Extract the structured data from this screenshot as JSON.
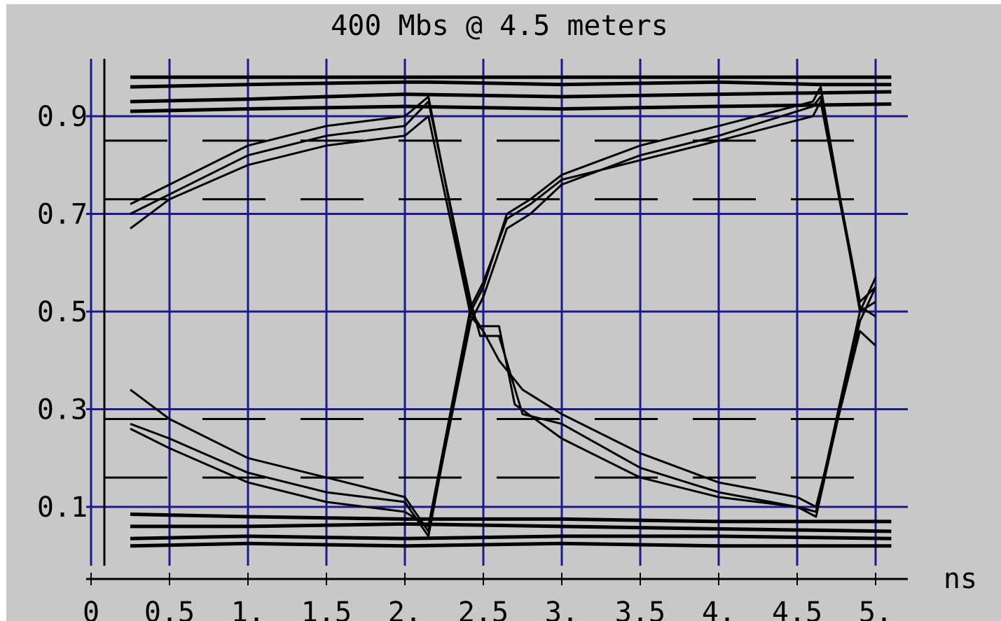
{
  "chart_data": {
    "type": "line",
    "title": "400 Mbs @ 4.5 meters",
    "xlabel": "ns",
    "ylabel": "",
    "xlim": [
      0,
      5.2
    ],
    "ylim": [
      -0.0
    ],
    "x_ticks": [
      {
        "value": 0,
        "label": "0"
      },
      {
        "value": 0.5,
        "label": "0.5"
      },
      {
        "value": 1.0,
        "label": "1."
      },
      {
        "value": 1.5,
        "label": "1.5"
      },
      {
        "value": 2.0,
        "label": "2."
      },
      {
        "value": 2.5,
        "label": "2.5"
      },
      {
        "value": 3.0,
        "label": "3."
      },
      {
        "value": 3.5,
        "label": "3.5"
      },
      {
        "value": 4.0,
        "label": "4."
      },
      {
        "value": 4.5,
        "label": "4.5"
      },
      {
        "value": 5.0,
        "label": "5."
      }
    ],
    "y_ticks": [
      {
        "value": 0.1,
        "label": "0.1"
      },
      {
        "value": 0.3,
        "label": "0.3"
      },
      {
        "value": 0.5,
        "label": "0.5"
      },
      {
        "value": 0.7,
        "label": "0.7"
      },
      {
        "value": 0.9,
        "label": "0.9"
      }
    ],
    "grid": true,
    "legend": "none",
    "colors": {
      "background": "#c8c8c8",
      "grid": "#1a1a8c",
      "trace": "#000000",
      "text": "#000000"
    },
    "series": [
      {
        "x": [
          0.25,
          2.15,
          2.45,
          2.65,
          4.65,
          5.1
        ],
        "y": [
          0.98,
          0.98,
          0.98,
          0.98,
          0.98,
          0.98
        ]
      },
      {
        "x": [
          0.25,
          1.0,
          2.0,
          2.15,
          3.0,
          4.0,
          4.65,
          5.1
        ],
        "y": [
          0.96,
          0.965,
          0.97,
          0.97,
          0.965,
          0.97,
          0.965,
          0.965
        ]
      },
      {
        "x": [
          0.25,
          1.0,
          2.0,
          3.0,
          4.0,
          5.1
        ],
        "y": [
          0.93,
          0.935,
          0.945,
          0.94,
          0.945,
          0.95
        ]
      },
      {
        "x": [
          0.25,
          1.0,
          2.0,
          3.0,
          4.0,
          5.1
        ],
        "y": [
          0.91,
          0.915,
          0.92,
          0.915,
          0.92,
          0.925
        ]
      },
      {
        "x": [
          0.25,
          1.0,
          2.0,
          3.0,
          4.0,
          5.1
        ],
        "y": [
          0.02,
          0.025,
          0.02,
          0.025,
          0.02,
          0.02
        ]
      },
      {
        "x": [
          0.25,
          1.0,
          2.0,
          3.0,
          4.0,
          5.1
        ],
        "y": [
          0.035,
          0.04,
          0.035,
          0.04,
          0.04,
          0.035
        ]
      },
      {
        "x": [
          0.25,
          1.0,
          2.0,
          3.0,
          4.0,
          5.1
        ],
        "y": [
          0.06,
          0.06,
          0.065,
          0.06,
          0.055,
          0.05
        ]
      },
      {
        "x": [
          0.25,
          1.0,
          2.0,
          3.0,
          4.0,
          5.1
        ],
        "y": [
          0.085,
          0.08,
          0.075,
          0.075,
          0.07,
          0.07
        ]
      },
      {
        "x": [
          0.25,
          0.5,
          1.0,
          1.5,
          2.0,
          2.15,
          2.42,
          2.48,
          2.6,
          2.7,
          3.0,
          3.5,
          4.0,
          4.5,
          4.62,
          4.9,
          5.0
        ],
        "y": [
          0.72,
          0.76,
          0.84,
          0.88,
          0.9,
          0.94,
          0.5,
          0.47,
          0.47,
          0.31,
          0.24,
          0.16,
          0.12,
          0.1,
          0.09,
          0.5,
          0.57
        ]
      },
      {
        "x": [
          0.25,
          0.5,
          1.0,
          1.5,
          2.0,
          2.15,
          2.42,
          2.48,
          2.6,
          2.75,
          3.0,
          3.5,
          4.0,
          4.5,
          4.62,
          4.9,
          5.0
        ],
        "y": [
          0.7,
          0.74,
          0.82,
          0.86,
          0.88,
          0.93,
          0.52,
          0.45,
          0.45,
          0.29,
          0.27,
          0.18,
          0.13,
          0.1,
          0.08,
          0.48,
          0.55
        ]
      },
      {
        "x": [
          0.25,
          0.5,
          1.0,
          1.5,
          2.0,
          2.15,
          2.42,
          2.5,
          2.6,
          2.75,
          3.0,
          3.5,
          4.0,
          4.5,
          4.62,
          4.9,
          5.0
        ],
        "y": [
          0.67,
          0.73,
          0.8,
          0.84,
          0.86,
          0.9,
          0.49,
          0.46,
          0.4,
          0.34,
          0.29,
          0.21,
          0.15,
          0.12,
          0.1,
          0.46,
          0.43
        ]
      },
      {
        "x": [
          0.25,
          0.5,
          1.0,
          1.5,
          2.0,
          2.15,
          2.42,
          2.5,
          2.65,
          2.8,
          3.0,
          3.5,
          4.0,
          4.6,
          4.65,
          4.9,
          5.0
        ],
        "y": [
          0.34,
          0.28,
          0.2,
          0.16,
          0.12,
          0.05,
          0.48,
          0.53,
          0.67,
          0.7,
          0.76,
          0.82,
          0.86,
          0.92,
          0.94,
          0.52,
          0.55
        ]
      },
      {
        "x": [
          0.25,
          0.5,
          1.0,
          1.5,
          2.0,
          2.15,
          2.42,
          2.5,
          2.65,
          2.8,
          3.0,
          3.5,
          4.0,
          4.6,
          4.65,
          4.9,
          5.0
        ],
        "y": [
          0.27,
          0.24,
          0.17,
          0.13,
          0.11,
          0.04,
          0.5,
          0.55,
          0.7,
          0.73,
          0.78,
          0.84,
          0.88,
          0.93,
          0.96,
          0.5,
          0.52
        ]
      },
      {
        "x": [
          0.25,
          0.5,
          1.0,
          1.5,
          2.0,
          2.15,
          2.42,
          2.5,
          2.65,
          2.8,
          3.0,
          3.5,
          4.0,
          4.6,
          4.65,
          4.9,
          5.0
        ],
        "y": [
          0.26,
          0.22,
          0.15,
          0.11,
          0.09,
          0.06,
          0.51,
          0.56,
          0.69,
          0.72,
          0.77,
          0.81,
          0.85,
          0.9,
          0.93,
          0.51,
          0.49
        ]
      }
    ]
  }
}
